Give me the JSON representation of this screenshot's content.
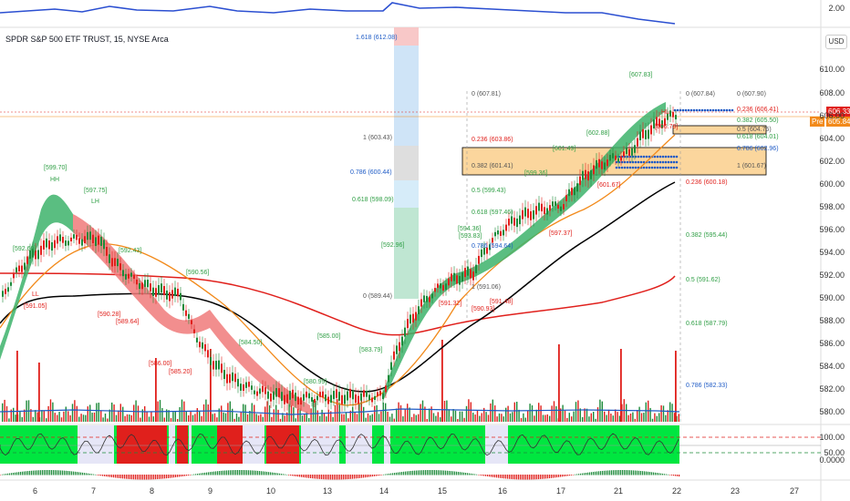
{
  "title": "SPDR S&P 500 ETF TRUST, 15, NYSE Arca",
  "currency": "USD",
  "price_tag": "606.33",
  "pre_tag": {
    "label": "Pre",
    "value": "605.84"
  },
  "top_axis_label": "2.00",
  "price_axis": [
    "610.00",
    "608.00",
    "606.00",
    "604.00",
    "602.00",
    "600.00",
    "598.00",
    "596.00",
    "594.00",
    "592.00",
    "590.00",
    "588.00",
    "586.00",
    "584.00",
    "582.00",
    "580.00"
  ],
  "osc_axis": [
    "100.00",
    "50.00",
    "0.0000"
  ],
  "x_axis": [
    "6",
    "7",
    "8",
    "9",
    "10",
    "13",
    "14",
    "15",
    "16",
    "17",
    "21",
    "22",
    "23",
    "24",
    "27"
  ],
  "fib_left": [
    "1.618 (612.08)",
    "1 (603.43)",
    "0.786 (600.44)",
    "0.618 (598.09)",
    "0 (589.44)"
  ],
  "fib_mid": [
    "0 (607.81)",
    "0.236 (603.86)",
    "0.382 (601.41)",
    "0.5 (599.43)",
    "0.618 (597.46)",
    "0.786 (594.64)",
    "1 (591.06)"
  ],
  "fib_right": [
    "0 (607.90)",
    "0.236 (606.41)",
    "0.382 (605.50)",
    "0.5 (604.75)",
    "0.618 (604.01)",
    "0.786 (602.96)",
    "1 (601.67)"
  ],
  "fib_far": [
    "0 (607.84)",
    "0.236 (600.18)",
    "0.382 (595.44)",
    "0.5 (591.62)",
    "0.618 (587.79)",
    "0.786 (582.33)"
  ],
  "pivots": [
    {
      "t": "[599.70]",
      "c": "g"
    },
    {
      "t": "HH",
      "c": "g"
    },
    {
      "t": "[597.75]",
      "c": "g"
    },
    {
      "t": "LH",
      "c": "g"
    },
    {
      "t": "[592.60]",
      "c": "g"
    },
    {
      "t": "[591.05]",
      "c": "r"
    },
    {
      "t": "LL",
      "c": "r"
    },
    {
      "t": "[592.43]",
      "c": "g"
    },
    {
      "t": "[590.28]",
      "c": "r"
    },
    {
      "t": "[589.64]",
      "c": "r"
    },
    {
      "t": "[590.56]",
      "c": "g"
    },
    {
      "t": "[586.00]",
      "c": "r"
    },
    {
      "t": "[585.20]",
      "c": "r"
    },
    {
      "t": "[584.50]",
      "c": "g"
    },
    {
      "t": "[585.00]",
      "c": "g"
    },
    {
      "t": "[580.99]",
      "c": "g"
    },
    {
      "t": "[583.79]",
      "c": "g"
    },
    {
      "t": "[592.96]",
      "c": "g"
    },
    {
      "t": "[594.36]",
      "c": "g"
    },
    {
      "t": "[593.83]",
      "c": "g"
    },
    {
      "t": "[591.32]",
      "c": "r"
    },
    {
      "t": "[590.93]",
      "c": "r"
    },
    {
      "t": "[591.48]",
      "c": "r"
    },
    {
      "t": "[599.36]",
      "c": "g"
    },
    {
      "t": "[601.49]",
      "c": "g"
    },
    {
      "t": "[602.88]",
      "c": "g"
    },
    {
      "t": "[597.37]",
      "c": "r"
    },
    {
      "t": "[601.67]",
      "c": "r"
    },
    {
      "t": "[607.83]",
      "c": "g"
    },
    {
      "t": "[606.78]",
      "c": "r"
    },
    {
      "t": "HL",
      "c": "r"
    }
  ],
  "colors": {
    "up": "#1d8a3a",
    "down": "#e0201c",
    "fast_ma": "#f28a1b",
    "slow_ma": "#000000",
    "long_ma": "#e0201c",
    "vol_ma": "#1e5bc6",
    "box": "#f7b54d",
    "osc_green": "#00e640",
    "osc_red": "#e0201c"
  }
}
